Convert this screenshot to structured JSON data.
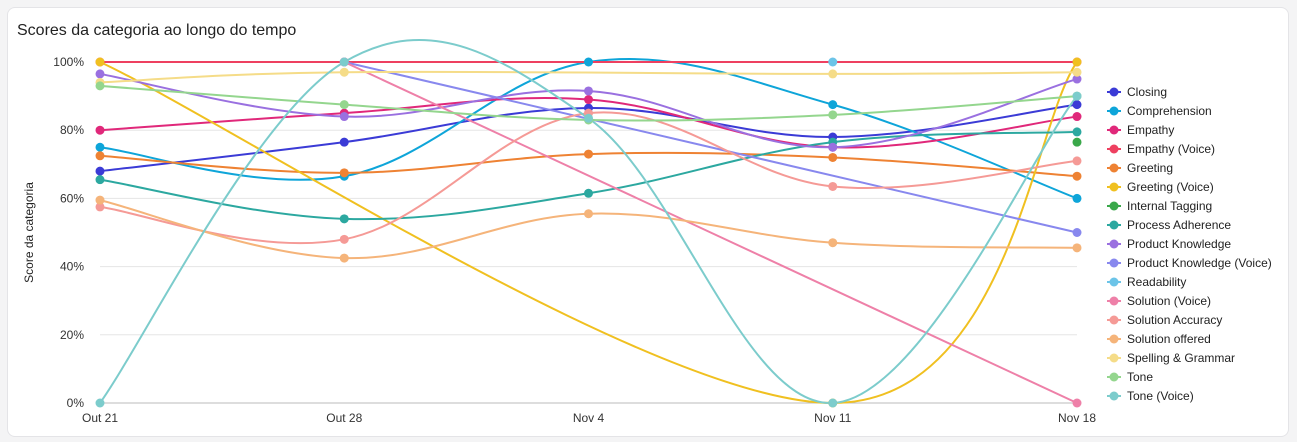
{
  "chart_data": {
    "type": "line",
    "title": "Scores da categoria ao longo do tempo",
    "xlabel": "",
    "ylabel": "Score da categoria",
    "ylim": [
      0,
      100
    ],
    "yticks": [
      "0%",
      "20%",
      "40%",
      "60%",
      "80%",
      "100%"
    ],
    "grid": true,
    "legend_position": "right",
    "x": [
      "Out 21",
      "Out 28",
      "Nov 4",
      "Nov 11",
      "Nov 18"
    ],
    "series": [
      {
        "name": "Closing",
        "color": "#3b3bd6",
        "values": [
          68,
          76.5,
          86.5,
          78,
          87.5
        ]
      },
      {
        "name": "Comprehension",
        "color": "#0ea5d9",
        "values": [
          75,
          66.5,
          100,
          87.5,
          60
        ]
      },
      {
        "name": "Empathy",
        "color": "#e0287a",
        "values": [
          80,
          85,
          89,
          75,
          84
        ]
      },
      {
        "name": "Empathy (Voice)",
        "color": "#ee4060",
        "values": [
          100,
          100,
          null,
          null,
          100
        ]
      },
      {
        "name": "Greeting",
        "color": "#ee8233",
        "values": [
          72.5,
          67.5,
          73,
          72,
          66.5
        ]
      },
      {
        "name": "Greeting (Voice)",
        "color": "#f0c020",
        "values": [
          100,
          null,
          null,
          0,
          100
        ]
      },
      {
        "name": "Internal Tagging",
        "color": "#3aa84a",
        "values": [
          null,
          null,
          null,
          null,
          76.5
        ]
      },
      {
        "name": "Process Adherence",
        "color": "#2ca8a0",
        "values": [
          65.5,
          54,
          61.5,
          76.5,
          79.5
        ]
      },
      {
        "name": "Product Knowledge",
        "color": "#9a70e0",
        "values": [
          96.5,
          84,
          91.5,
          75,
          95
        ]
      },
      {
        "name": "Product Knowledge (Voice)",
        "color": "#8888ee",
        "values": [
          null,
          100,
          null,
          null,
          50
        ]
      },
      {
        "name": "Readability",
        "color": "#6cc4e8",
        "values": [
          null,
          null,
          null,
          100,
          null
        ]
      },
      {
        "name": "Solution (Voice)",
        "color": "#ee80a8",
        "values": [
          null,
          100,
          null,
          null,
          0
        ]
      },
      {
        "name": "Solution Accuracy",
        "color": "#f59a96",
        "values": [
          57.5,
          48,
          85,
          63.5,
          71
        ]
      },
      {
        "name": "Solution offered",
        "color": "#f5b47a",
        "values": [
          59.5,
          42.5,
          55.5,
          47,
          45.5
        ]
      },
      {
        "name": "Spelling & Grammar",
        "color": "#f5dc88",
        "values": [
          94,
          97,
          null,
          96.5,
          97
        ]
      },
      {
        "name": "Tone",
        "color": "#94d68e",
        "values": [
          93,
          87.5,
          83,
          84.5,
          90
        ]
      },
      {
        "name": "Tone (Voice)",
        "color": "#7ccccc",
        "values": [
          0,
          100,
          83.5,
          0,
          90
        ]
      }
    ]
  }
}
